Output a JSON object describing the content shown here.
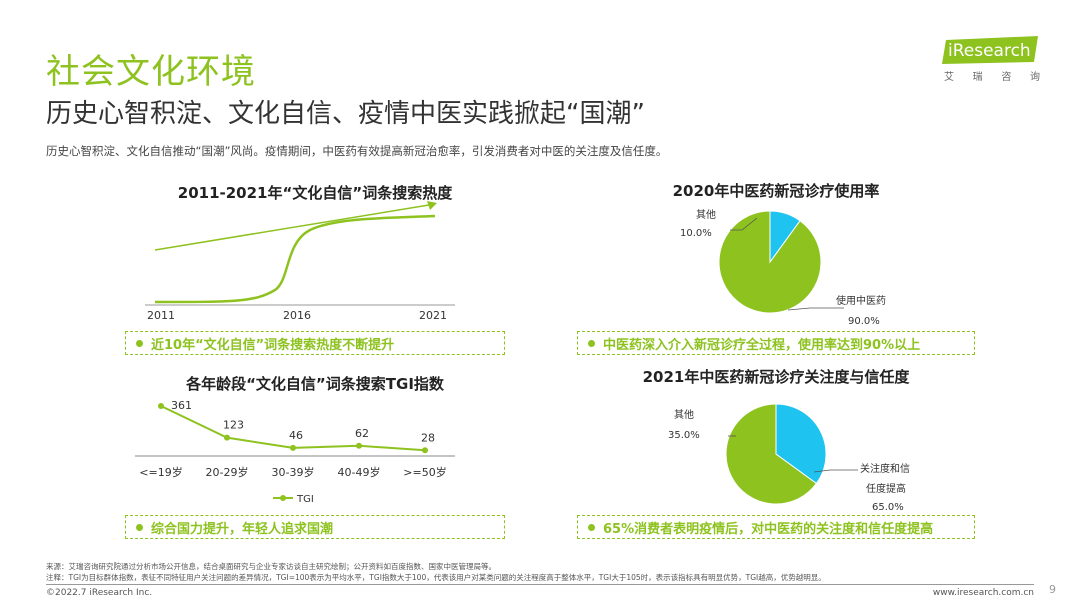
{
  "page": {
    "title": "社会文化环境",
    "subtitle": "历史心智积淀、文化自信、疫情中医实践掀起“国潮”",
    "description": "历史心智积淀、文化自信推动“国潮”风尚。疫情期间，中医药有效提高新冠治愈率，引发消费者对中医的关注度及信任度。"
  },
  "logo": {
    "brand": "iResearch",
    "tagline": [
      "艾",
      "瑞",
      "咨",
      "询"
    ],
    "accent": "#8dc21f"
  },
  "colors": {
    "green": "#8dc21f",
    "blue": "#1ec3f0",
    "gray_line": "#555555"
  },
  "chart_data": [
    {
      "type": "line",
      "title": "2011-2021年“文化自信”词条搜索热度",
      "x_ticks": [
        "2011",
        "2016",
        "2021"
      ],
      "trend_arrow": true,
      "callout": "近10年“文化自信”词条搜索热度不断提升"
    },
    {
      "type": "pie",
      "title": "2020年中医药新冠诊疗使用率",
      "slices": [
        {
          "label": "使用中医药",
          "value": 90.0,
          "value_label": "90.0%",
          "color": "#8dc21f"
        },
        {
          "label": "其他",
          "value": 10.0,
          "value_label": "10.0%",
          "color": "#1ec3f0"
        }
      ],
      "callout": "中医药深入介入新冠诊疗全过程，使用率达到90%以上"
    },
    {
      "type": "line",
      "title": "各年龄段“文化自信”词条搜索TGI指数",
      "categories": [
        "<=19岁",
        "20-29岁",
        "30-39岁",
        "40-49岁",
        ">=50岁"
      ],
      "series": [
        {
          "name": "TGI",
          "values": [
            361,
            123,
            46,
            62,
            28
          ]
        }
      ],
      "callout": "综合国力提升，年轻人追求国潮"
    },
    {
      "type": "pie",
      "title": "2021年中医药新冠诊疗关注度与信任度",
      "slices": [
        {
          "label_lines": [
            "关注度和信",
            "任度提高"
          ],
          "value": 65.0,
          "value_label": "65.0%",
          "color": "#8dc21f"
        },
        {
          "label_lines": [
            "其他"
          ],
          "value": 35.0,
          "value_label": "35.0%",
          "color": "#1ec3f0"
        }
      ],
      "callout": "65%消费者表明疫情后，对中医药的关注度和信任度提高"
    }
  ],
  "footer": {
    "source": "来源：艾瑞咨询研究院通过分析市场公开信息，结合桌面研究与企业专家访谈自主研究绘制；公开资料如百度指数、国家中医管理局等。",
    "note": "注释：TGI为目标群体指数，表征不同特征用户关注问题的差异情况，TGI=100表示为平均水平，TGI指数大于100，代表该用户对某类问题的关注程度高于整体水平，TGI大于105时，表示该指标具有明显优势，TGI越高，优势越明显。",
    "copyright": "©2022.7 iResearch Inc.",
    "site": "www.iresearch.com.cn",
    "page_number": "9"
  }
}
